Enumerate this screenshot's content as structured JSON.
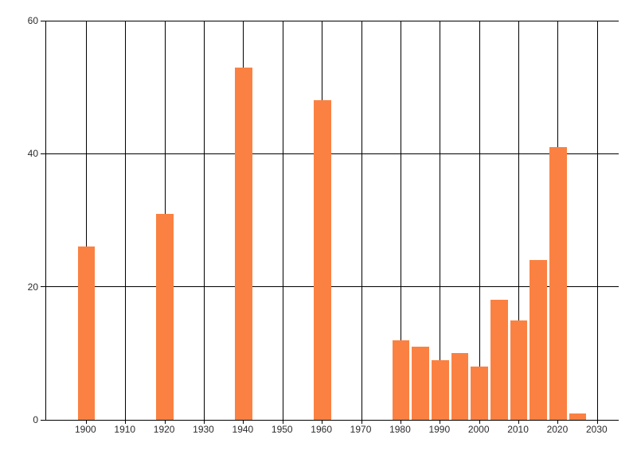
{
  "chart_data": {
    "type": "bar",
    "title": "",
    "xlabel": "",
    "ylabel": "",
    "x": [
      1900,
      1920,
      1940,
      1960,
      1980,
      1985,
      1990,
      1995,
      2000,
      2005,
      2010,
      2015,
      2020,
      2025
    ],
    "values": [
      26,
      31,
      53,
      48,
      12,
      11,
      9,
      10,
      8,
      18,
      15,
      24,
      41,
      1
    ],
    "xlim": [
      1889.8,
      2035.4
    ],
    "ylim": [
      0,
      60
    ],
    "x_ticks": [
      1900,
      1910,
      1920,
      1930,
      1940,
      1950,
      1960,
      1970,
      1980,
      1990,
      2000,
      2010,
      2020,
      2030
    ],
    "y_ticks": [
      0,
      20,
      40,
      60
    ],
    "bar_width_x": 4.4,
    "grid": true,
    "legend": false,
    "colors": {
      "bar": "#fb8142",
      "grid": "#000000",
      "text": "#2b2b2b",
      "background": "#ffffff"
    }
  }
}
